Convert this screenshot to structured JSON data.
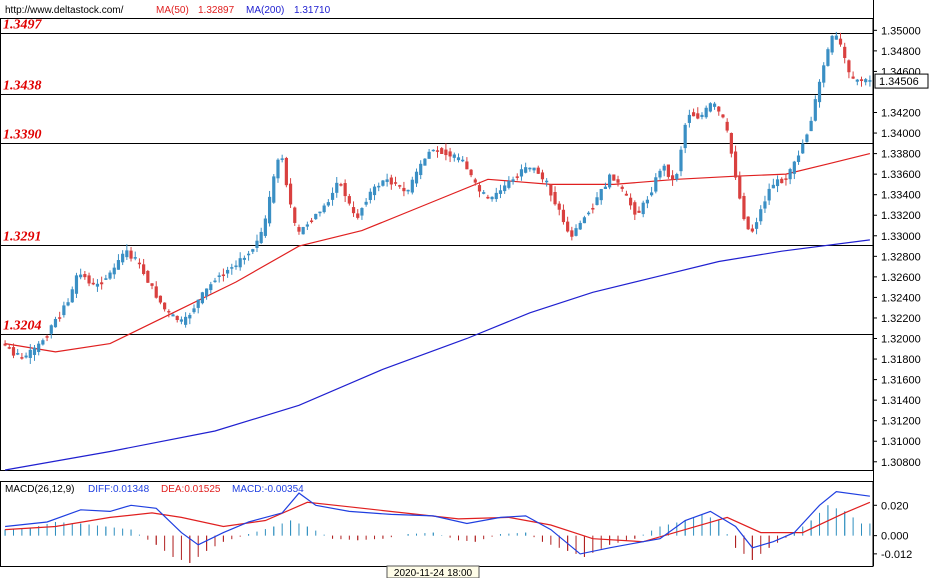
{
  "header": {
    "url": "http://www.deltastock.com/",
    "ma50_label": "MA(50)",
    "ma50_value": "1.32897",
    "ma200_label": "MA(200)",
    "ma200_value": "1.31710"
  },
  "colors": {
    "up_candle": "#3a8fc4",
    "down_candle": "#d9403f",
    "ma50": "#e02020",
    "ma200": "#2020d0",
    "level_text": "#e00000",
    "macd_diff": "#1f3fe0",
    "macd_dea": "#e02020"
  },
  "chart_data": [
    {
      "type": "candlestick",
      "ylim": [
        1.3072,
        1.3512
      ],
      "y_ticks": [
        "1.35000",
        "1.34800",
        "1.34600",
        "1.34200",
        "1.34000",
        "1.33800",
        "1.33600",
        "1.33400",
        "1.33200",
        "1.33000",
        "1.32800",
        "1.32600",
        "1.32400",
        "1.32200",
        "1.32000",
        "1.31800",
        "1.31600",
        "1.31400",
        "1.31200",
        "1.31000",
        "1.30800"
      ],
      "current_price": "1.34506",
      "levels": [
        {
          "label": "1.3497",
          "value": 1.3497
        },
        {
          "label": "1.3438",
          "value": 1.3438
        },
        {
          "label": "1.3390",
          "value": 1.339
        },
        {
          "label": "1.3291",
          "value": 1.3291
        },
        {
          "label": "1.3204",
          "value": 1.3204
        }
      ],
      "price_path": [
        [
          0,
          1.3195
        ],
        [
          4,
          1.318
        ],
        [
          8,
          1.319
        ],
        [
          12,
          1.3215
        ],
        [
          16,
          1.324
        ],
        [
          18,
          1.3265
        ],
        [
          22,
          1.325
        ],
        [
          26,
          1.3265
        ],
        [
          29,
          1.3285
        ],
        [
          32,
          1.3275
        ],
        [
          36,
          1.3245
        ],
        [
          39,
          1.3225
        ],
        [
          43,
          1.3215
        ],
        [
          47,
          1.324
        ],
        [
          51,
          1.326
        ],
        [
          55,
          1.327
        ],
        [
          59,
          1.3285
        ],
        [
          62,
          1.3305
        ],
        [
          64,
          1.3345
        ],
        [
          66,
          1.3385
        ],
        [
          68,
          1.334
        ],
        [
          70,
          1.33
        ],
        [
          73,
          1.3315
        ],
        [
          77,
          1.333
        ],
        [
          80,
          1.3355
        ],
        [
          82,
          1.3335
        ],
        [
          84,
          1.3315
        ],
        [
          87,
          1.334
        ],
        [
          91,
          1.3355
        ],
        [
          94,
          1.335
        ],
        [
          96,
          1.334
        ],
        [
          99,
          1.3365
        ],
        [
          102,
          1.3385
        ],
        [
          106,
          1.338
        ],
        [
          110,
          1.337
        ],
        [
          113,
          1.3345
        ],
        [
          116,
          1.3335
        ],
        [
          120,
          1.335
        ],
        [
          124,
          1.3365
        ],
        [
          127,
          1.3365
        ],
        [
          130,
          1.3345
        ],
        [
          133,
          1.332
        ],
        [
          135,
          1.3298
        ],
        [
          138,
          1.3315
        ],
        [
          142,
          1.334
        ],
        [
          145,
          1.336
        ],
        [
          148,
          1.334
        ],
        [
          151,
          1.332
        ],
        [
          154,
          1.334
        ],
        [
          157,
          1.337
        ],
        [
          160,
          1.335
        ],
        [
          163,
          1.342
        ],
        [
          166,
          1.3415
        ],
        [
          169,
          1.343
        ],
        [
          172,
          1.341
        ],
        [
          174,
          1.337
        ],
        [
          176,
          1.3325
        ],
        [
          178,
          1.33
        ],
        [
          180,
          1.332
        ],
        [
          183,
          1.335
        ],
        [
          186,
          1.3355
        ],
        [
          188,
          1.3365
        ],
        [
          190,
          1.3385
        ],
        [
          192,
          1.3405
        ],
        [
          194,
          1.344
        ],
        [
          196,
          1.3475
        ],
        [
          198,
          1.3498
        ],
        [
          200,
          1.348
        ],
        [
          202,
          1.345
        ],
        [
          204,
          1.3452
        ],
        [
          206,
          1.345
        ]
      ],
      "ma50_path": [
        [
          0,
          1.3195
        ],
        [
          12,
          1.3187
        ],
        [
          25,
          1.3195
        ],
        [
          40,
          1.3225
        ],
        [
          55,
          1.3255
        ],
        [
          70,
          1.329
        ],
        [
          85,
          1.3305
        ],
        [
          100,
          1.333
        ],
        [
          115,
          1.3355
        ],
        [
          130,
          1.335
        ],
        [
          145,
          1.335
        ],
        [
          160,
          1.3355
        ],
        [
          174,
          1.3358
        ],
        [
          186,
          1.336
        ],
        [
          196,
          1.337
        ],
        [
          206,
          1.338
        ]
      ],
      "ma200_path": [
        [
          0,
          1.3072
        ],
        [
          25,
          1.309
        ],
        [
          50,
          1.311
        ],
        [
          70,
          1.3135
        ],
        [
          90,
          1.317
        ],
        [
          110,
          1.32
        ],
        [
          125,
          1.3225
        ],
        [
          140,
          1.3245
        ],
        [
          155,
          1.326
        ],
        [
          170,
          1.3275
        ],
        [
          185,
          1.3285
        ],
        [
          206,
          1.3296
        ]
      ]
    },
    {
      "type": "bar+line",
      "title": "MACD(26,12,9)",
      "diff_label": "DIFF:0.01348",
      "dea_label": "DEA:0.01525",
      "macd_label": "MACD:-0.00354",
      "ylim": [
        -0.02,
        0.036
      ],
      "y_ticks": [
        "0.020",
        "0.000",
        "-0.012"
      ],
      "diff_path": [
        [
          0,
          0.006
        ],
        [
          10,
          0.009
        ],
        [
          18,
          0.017
        ],
        [
          25,
          0.016
        ],
        [
          30,
          0.02
        ],
        [
          36,
          0.018
        ],
        [
          42,
          0.002
        ],
        [
          46,
          -0.006
        ],
        [
          52,
          0.002
        ],
        [
          58,
          0.009
        ],
        [
          66,
          0.015
        ],
        [
          70,
          0.028
        ],
        [
          74,
          0.02
        ],
        [
          82,
          0.016
        ],
        [
          92,
          0.014
        ],
        [
          102,
          0.013
        ],
        [
          110,
          0.008
        ],
        [
          118,
          0.012
        ],
        [
          124,
          0.013
        ],
        [
          130,
          0.004
        ],
        [
          137,
          -0.012
        ],
        [
          144,
          -0.008
        ],
        [
          150,
          -0.005
        ],
        [
          156,
          -0.002
        ],
        [
          162,
          0.01
        ],
        [
          168,
          0.016
        ],
        [
          174,
          0.006
        ],
        [
          178,
          -0.008
        ],
        [
          183,
          -0.004
        ],
        [
          188,
          0.002
        ],
        [
          194,
          0.02
        ],
        [
          198,
          0.029
        ],
        [
          206,
          0.026
        ]
      ],
      "dea_path": [
        [
          0,
          0.004
        ],
        [
          12,
          0.006
        ],
        [
          25,
          0.012
        ],
        [
          35,
          0.015
        ],
        [
          42,
          0.012
        ],
        [
          52,
          0.006
        ],
        [
          62,
          0.01
        ],
        [
          72,
          0.022
        ],
        [
          82,
          0.019
        ],
        [
          95,
          0.015
        ],
        [
          108,
          0.011
        ],
        [
          120,
          0.012
        ],
        [
          130,
          0.007
        ],
        [
          140,
          -0.002
        ],
        [
          152,
          -0.004
        ],
        [
          162,
          0.004
        ],
        [
          172,
          0.012
        ],
        [
          180,
          0.002
        ],
        [
          190,
          0.002
        ],
        [
          200,
          0.015
        ],
        [
          206,
          0.022
        ]
      ],
      "hist": [
        [
          0,
          0.004
        ],
        [
          6,
          0.005
        ],
        [
          12,
          0.009
        ],
        [
          18,
          0.008
        ],
        [
          24,
          0.006
        ],
        [
          30,
          0.004
        ],
        [
          36,
          -0.006
        ],
        [
          40,
          -0.014
        ],
        [
          44,
          -0.018
        ],
        [
          48,
          -0.01
        ],
        [
          52,
          -0.004
        ],
        [
          58,
          0.001
        ],
        [
          64,
          0.006
        ],
        [
          68,
          0.01
        ],
        [
          72,
          0.006
        ],
        [
          78,
          -0.002
        ],
        [
          84,
          -0.003
        ],
        [
          90,
          -0.002
        ],
        [
          96,
          0.001
        ],
        [
          102,
          0.002
        ],
        [
          108,
          -0.003
        ],
        [
          112,
          -0.004
        ],
        [
          118,
          0.001
        ],
        [
          124,
          0.002
        ],
        [
          128,
          -0.004
        ],
        [
          134,
          -0.01
        ],
        [
          138,
          -0.014
        ],
        [
          144,
          -0.006
        ],
        [
          150,
          -0.002
        ],
        [
          156,
          0.006
        ],
        [
          162,
          0.01
        ],
        [
          166,
          0.014
        ],
        [
          170,
          0.01
        ],
        [
          174,
          -0.008
        ],
        [
          178,
          -0.016
        ],
        [
          182,
          -0.008
        ],
        [
          188,
          0.002
        ],
        [
          192,
          0.01
        ],
        [
          196,
          0.02
        ],
        [
          200,
          0.016
        ],
        [
          204,
          0.008
        ]
      ]
    }
  ],
  "footer": {
    "timestamp": "2020-11-24 18:00"
  }
}
